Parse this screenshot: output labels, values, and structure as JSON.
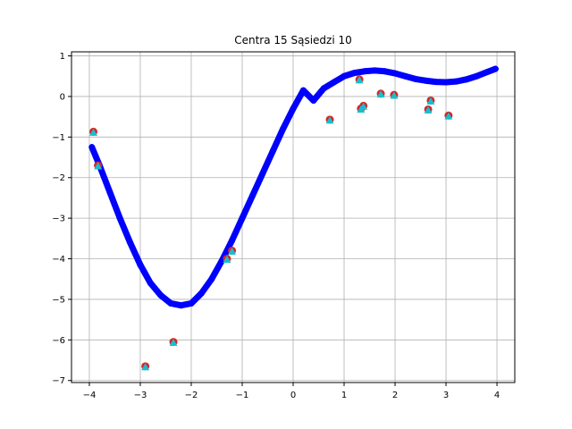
{
  "chart_data": {
    "type": "scatter",
    "title": "Centra 15 Sąsiedzi 10",
    "xlabel": "",
    "ylabel": "",
    "xlim": [
      -4.35,
      4.35
    ],
    "ylim": [
      -7.05,
      1.1
    ],
    "grid": true,
    "x_ticks": [
      -4,
      -3,
      -2,
      -1,
      0,
      1,
      2,
      3,
      4
    ],
    "y_ticks": [
      -7,
      -6,
      -5,
      -4,
      -3,
      -2,
      -1,
      0,
      1
    ],
    "x_tick_labels": [
      "−4",
      "−3",
      "−2",
      "−1",
      "0",
      "1",
      "2",
      "3",
      "4"
    ],
    "y_tick_labels": [
      "−7",
      "−6",
      "−5",
      "−4",
      "−3",
      "−2",
      "−1",
      "0",
      "1"
    ],
    "colors": {
      "curve": "#0000ff",
      "training": "#d62728",
      "predicted": "#17becf",
      "grid": "#b0b0b0"
    },
    "series": [
      {
        "kind": "curve",
        "x": [
          -3.95,
          -3.8,
          -3.6,
          -3.4,
          -3.2,
          -3.0,
          -2.8,
          -2.6,
          -2.4,
          -2.2,
          -2.0,
          -1.8,
          -1.6,
          -1.4,
          -1.2,
          -1.0,
          -0.8,
          -0.6,
          -0.4,
          -0.2,
          0.0,
          0.2,
          0.4,
          0.6,
          0.8,
          1.0,
          1.2,
          1.4,
          1.6,
          1.8,
          2.0,
          2.2,
          2.4,
          2.6,
          2.8,
          3.0,
          3.2,
          3.4,
          3.6,
          3.8,
          3.97
        ],
        "y": [
          -1.25,
          -1.7,
          -2.35,
          -3.0,
          -3.6,
          -4.15,
          -4.6,
          -4.9,
          -5.1,
          -5.15,
          -5.1,
          -4.85,
          -4.5,
          -4.05,
          -3.55,
          -3.0,
          -2.45,
          -1.9,
          -1.35,
          -0.8,
          -0.3,
          0.15,
          -0.1,
          0.2,
          0.35,
          0.5,
          0.58,
          0.62,
          0.64,
          0.62,
          0.57,
          0.5,
          0.43,
          0.39,
          0.36,
          0.35,
          0.37,
          0.42,
          0.5,
          0.6,
          0.68
        ]
      },
      {
        "kind": "training",
        "x": [
          -3.92,
          -3.83,
          -2.9,
          -2.35,
          -1.3,
          -1.2,
          0.72,
          1.3,
          1.33,
          1.38,
          1.72,
          1.98,
          2.65,
          2.7,
          3.05
        ],
        "y": [
          -0.87,
          -1.7,
          -6.65,
          -6.05,
          -4.0,
          -3.8,
          -0.57,
          0.42,
          -0.3,
          -0.23,
          0.07,
          0.04,
          -0.32,
          -0.1,
          -0.47
        ]
      },
      {
        "kind": "predicted",
        "x": [
          -3.92,
          -3.83,
          -2.9,
          -2.35,
          -1.3,
          -1.2,
          0.72,
          1.3,
          1.33,
          1.38,
          1.72,
          1.98,
          2.65,
          2.7,
          3.05
        ],
        "y": [
          -0.89,
          -1.72,
          -6.67,
          -6.07,
          -4.02,
          -3.82,
          -0.59,
          0.4,
          -0.32,
          -0.25,
          0.05,
          0.02,
          -0.34,
          -0.12,
          -0.49
        ]
      }
    ]
  }
}
